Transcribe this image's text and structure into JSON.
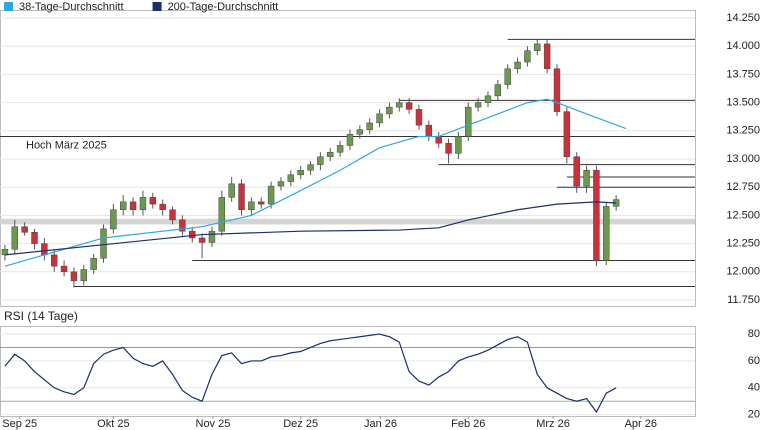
{
  "chart_data": [
    {
      "type": "candlestick",
      "legend": [
        {
          "name": "38-Tage-Durchschnitt",
          "color": "#2ea8e0"
        },
        {
          "name": "200-Tage-Durchschnitt",
          "color": "#1a2f6b"
        }
      ],
      "open": [
        12.15,
        12.2,
        12.4,
        12.35,
        12.25,
        12.15,
        12.05,
        12.0,
        11.92,
        12.02,
        12.12,
        12.38,
        12.55,
        12.62,
        12.55,
        12.66,
        12.6,
        12.55,
        12.46,
        12.36,
        12.3,
        12.26,
        12.36,
        12.66,
        12.78,
        12.55,
        12.62,
        12.6,
        12.76,
        12.8,
        12.86,
        12.9,
        12.95,
        13.02,
        13.06,
        13.12,
        13.22,
        13.26,
        13.32,
        13.4,
        13.46,
        13.5,
        13.44,
        13.3,
        13.2,
        13.14,
        13.05,
        13.2,
        13.46,
        13.5,
        13.56,
        13.66,
        13.8,
        13.86,
        13.96,
        14.02,
        13.8,
        13.42,
        13.02,
        12.76,
        12.9,
        12.1,
        12.58
      ],
      "high": [
        12.24,
        12.46,
        12.44,
        12.38,
        12.3,
        12.2,
        12.1,
        12.04,
        12.06,
        12.16,
        12.42,
        12.6,
        12.68,
        12.66,
        12.72,
        12.7,
        12.64,
        12.58,
        12.5,
        12.4,
        12.34,
        12.4,
        12.72,
        12.84,
        12.82,
        12.66,
        12.66,
        12.8,
        12.84,
        12.9,
        12.94,
        12.98,
        13.06,
        13.1,
        13.16,
        13.26,
        13.3,
        13.36,
        13.44,
        13.5,
        13.54,
        13.54,
        13.48,
        13.34,
        13.24,
        13.18,
        13.24,
        13.5,
        13.54,
        13.6,
        13.7,
        13.84,
        13.9,
        14.0,
        14.06,
        14.06,
        13.84,
        13.46,
        13.06,
        12.94,
        12.94,
        12.62,
        12.68
      ],
      "low": [
        12.1,
        12.16,
        12.32,
        12.2,
        12.1,
        12.0,
        11.96,
        11.86,
        11.88,
        11.98,
        12.08,
        12.34,
        12.5,
        12.5,
        12.5,
        12.56,
        12.5,
        12.42,
        12.32,
        12.26,
        12.12,
        12.22,
        12.32,
        12.62,
        12.5,
        12.5,
        12.56,
        12.56,
        12.72,
        12.76,
        12.82,
        12.86,
        12.9,
        12.98,
        13.02,
        13.08,
        13.18,
        13.22,
        13.28,
        13.36,
        13.42,
        13.4,
        13.26,
        13.16,
        13.1,
        12.96,
        13.0,
        13.16,
        13.42,
        13.46,
        13.52,
        13.62,
        13.76,
        13.82,
        13.92,
        13.76,
        13.38,
        12.96,
        12.7,
        12.7,
        12.05,
        12.06,
        12.54
      ],
      "close": [
        12.2,
        12.4,
        12.35,
        12.25,
        12.15,
        12.05,
        12.0,
        11.92,
        12.02,
        12.12,
        12.38,
        12.55,
        12.62,
        12.55,
        12.66,
        12.6,
        12.55,
        12.46,
        12.36,
        12.3,
        12.26,
        12.36,
        12.66,
        12.78,
        12.55,
        12.62,
        12.6,
        12.76,
        12.8,
        12.86,
        12.9,
        12.95,
        13.02,
        13.06,
        13.12,
        13.22,
        13.26,
        13.32,
        13.4,
        13.46,
        13.5,
        13.44,
        13.3,
        13.2,
        13.14,
        13.05,
        13.2,
        13.46,
        13.5,
        13.56,
        13.66,
        13.8,
        13.86,
        13.96,
        14.02,
        13.8,
        13.42,
        13.02,
        12.76,
        12.9,
        12.1,
        12.58,
        12.64
      ],
      "up_color": "#6b9a4f",
      "down_color": "#c8323c",
      "series": [
        {
          "name": "38-Tage-Durchschnitt",
          "color": "#2ea8e0",
          "x": [
            0,
            10,
            20,
            25,
            30,
            34,
            38,
            42,
            44,
            47,
            50,
            53,
            55,
            56,
            59,
            63
          ],
          "values": [
            12.05,
            12.3,
            12.4,
            12.5,
            12.72,
            12.9,
            13.1,
            13.2,
            13.2,
            13.3,
            13.4,
            13.5,
            13.53,
            13.5,
            13.4,
            13.27
          ]
        },
        {
          "name": "200-Tage-Durchschnitt",
          "color": "#1a2f6b",
          "x": [
            0,
            20,
            30,
            40,
            44,
            47,
            52,
            56,
            60,
            62
          ],
          "values": [
            12.15,
            12.33,
            12.36,
            12.37,
            12.39,
            12.46,
            12.55,
            12.6,
            12.62,
            12.61
          ]
        }
      ],
      "levels": [
        {
          "value": 14.06,
          "start": 51
        },
        {
          "value": 13.52,
          "start": 40
        },
        {
          "value": 13.2,
          "start": -0.5,
          "label": "Hoch März 2025"
        },
        {
          "value": 12.95,
          "start": 44
        },
        {
          "value": 12.84,
          "start": 57
        },
        {
          "value": 12.75,
          "start": 56
        },
        {
          "value": 12.1,
          "start": 19
        },
        {
          "value": 11.87,
          "start": 7
        }
      ],
      "band": [
        12.42,
        12.47
      ],
      "xlim": [
        -0.5,
        70
      ],
      "ylim": [
        11.75,
        14.25
      ],
      "yticks": [
        {
          "value": 11.75,
          "label": "11.750"
        },
        {
          "value": 12,
          "label": "12.000"
        },
        {
          "value": 12.25,
          "label": "12.250"
        },
        {
          "value": 12.5,
          "label": "12.500"
        },
        {
          "value": 12.75,
          "label": "12.750"
        },
        {
          "value": 13,
          "label": "13.000"
        },
        {
          "value": 13.25,
          "label": "13.250"
        },
        {
          "value": 13.5,
          "label": "13.500"
        },
        {
          "value": 13.75,
          "label": "13.750"
        },
        {
          "value": 14,
          "label": "14.000"
        },
        {
          "value": 14.25,
          "label": "14.250"
        }
      ],
      "grid": true
    },
    {
      "type": "line",
      "title": "RSI (14 Tage)",
      "series": [
        {
          "name": "RSI",
          "color": "#1a2f6b",
          "values": [
            56,
            65,
            60,
            52,
            46,
            40,
            37,
            35,
            40,
            58,
            65,
            68,
            70,
            62,
            58,
            56,
            60,
            50,
            38,
            33,
            30,
            50,
            64,
            66,
            58,
            60,
            60,
            63,
            64,
            66,
            67,
            70,
            73,
            75,
            76,
            77,
            78,
            79,
            80,
            78,
            74,
            52,
            45,
            42,
            48,
            52,
            60,
            63,
            65,
            68,
            72,
            76,
            78,
            74,
            50,
            40,
            36,
            32,
            30,
            32,
            22,
            36,
            40
          ]
        }
      ],
      "thresholds": [
        {
          "value": 70,
          "color": "#e07a7a"
        },
        {
          "value": 30,
          "color": "#8cc08c"
        }
      ],
      "xlim": [
        -0.5,
        70
      ],
      "xticks": [
        {
          "value": 1.5,
          "label": "Sep 25"
        },
        {
          "value": 11,
          "label": "Okt 25"
        },
        {
          "value": 21.1,
          "label": "Nov 25"
        },
        {
          "value": 30,
          "label": "Dez 25"
        },
        {
          "value": 38.1,
          "label": "Jan 26"
        },
        {
          "value": 47,
          "label": "Feb 26"
        },
        {
          "value": 55.6,
          "label": "Mrz 26"
        },
        {
          "value": 64.5,
          "label": "Apr 26"
        }
      ],
      "ylim": [
        19,
        86
      ],
      "yticks": [
        20,
        40,
        60,
        80
      ],
      "grid": true
    }
  ]
}
